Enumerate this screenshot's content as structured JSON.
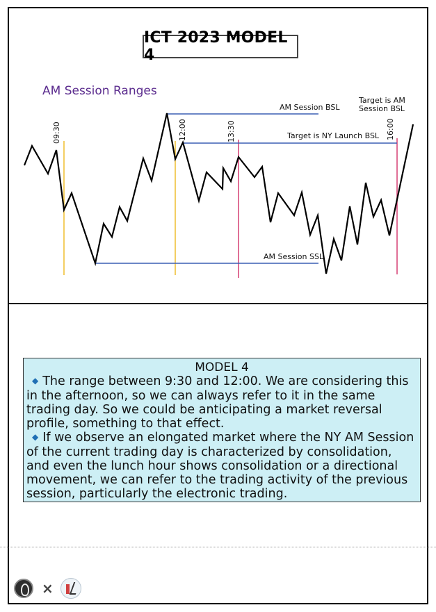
{
  "title": "ICT 2023 MODEL 4",
  "subtitle": "AM Session Ranges",
  "chart_data": {
    "type": "line",
    "series": [
      {
        "values": [
          [
            35,
            238
          ],
          [
            46,
            210
          ],
          [
            69,
            250
          ],
          [
            81,
            216
          ],
          [
            92,
            302
          ],
          [
            103,
            278
          ],
          [
            137,
            379
          ],
          [
            149,
            322
          ],
          [
            161,
            341
          ],
          [
            172,
            298
          ],
          [
            183,
            318
          ],
          [
            206,
            228
          ],
          [
            218,
            260
          ],
          [
            240,
            163
          ],
          [
            252,
            229
          ],
          [
            263,
            205
          ],
          [
            286,
            289
          ],
          [
            297,
            248
          ],
          [
            320,
            272
          ],
          [
            321,
            242
          ],
          [
            332,
            261
          ],
          [
            343,
            226
          ],
          [
            366,
            255
          ],
          [
            377,
            240
          ],
          [
            389,
            320
          ],
          [
            400,
            278
          ],
          [
            423,
            310
          ],
          [
            434,
            277
          ],
          [
            446,
            338
          ],
          [
            457,
            310
          ],
          [
            469,
            394
          ],
          [
            480,
            344
          ],
          [
            491,
            375
          ],
          [
            503,
            297
          ],
          [
            514,
            352
          ],
          [
            526,
            263
          ],
          [
            537,
            312
          ],
          [
            548,
            288
          ],
          [
            560,
            339
          ],
          [
            594,
            179
          ]
        ]
      }
    ],
    "vertical_markers": [
      {
        "label": "09:30",
        "x": 92,
        "color": "#f0c23a"
      },
      {
        "label": "12:00",
        "x": 252,
        "color": "#f0c23a"
      },
      {
        "label": "13:30",
        "x": 343,
        "color": "#d94b7c"
      },
      {
        "label": "16:00",
        "x": 571,
        "color": "#d94b7c"
      }
    ],
    "levels": [
      {
        "label": "AM Session BSL",
        "x1": 240,
        "x2": 458,
        "y": 164,
        "color": "#3a5fb4"
      },
      {
        "label": "Target is NY Launch BSL",
        "x1": 263,
        "x2": 571,
        "y": 206,
        "color": "#3a5fb4"
      },
      {
        "label": "AM Session SSL",
        "x1": 137,
        "x2": 458,
        "y": 379,
        "color": "#3a5fb4"
      }
    ],
    "annotations": [
      {
        "line1": "Target is AM",
        "line2": "Session BSL"
      }
    ]
  },
  "notes": {
    "title": "MODEL 4",
    "bullets": [
      "The range between 9:30 and 12:00. We are considering this in the afternoon, so we can always refer to it in the same trading day. So we could be anticipating a market reversal profile, something to that effect.",
      "If we observe an elongated market where the NY AM Session of the current trading day is characterized by consolidation, and even the lunch hour shows consolidation or a directional movement, we can refer to the trading activity of the previous session, particularly the electronic trading."
    ],
    "bullet_icon": "diamond-bullet-icon",
    "accent_color": "#1f6fb4",
    "background_color": "#cdeff5"
  },
  "footer": {
    "separator": "×",
    "logos": [
      "author-logo-icon",
      "partner-logo-icon"
    ]
  }
}
